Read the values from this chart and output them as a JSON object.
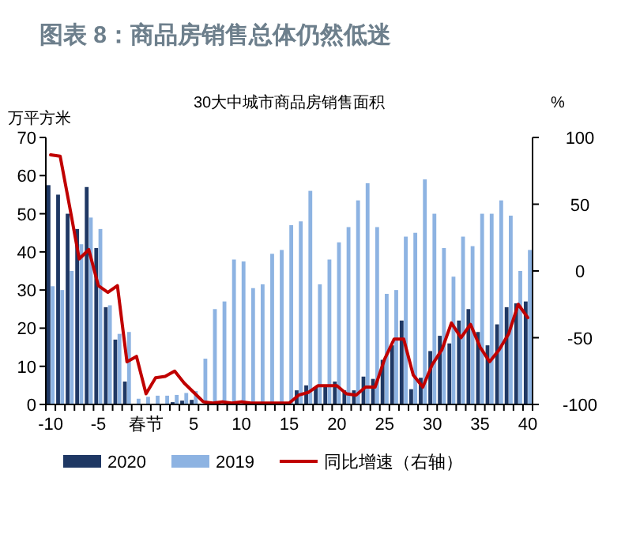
{
  "chart_data": {
    "type": "bar",
    "title": "图表 8：商品房销售总体仍然低迷",
    "subtitle": "30大中城市商品房销售面积",
    "ylabel": "万平方米",
    "y2label": "%",
    "categories": [
      "-10",
      null,
      null,
      null,
      null,
      "-5",
      null,
      null,
      null,
      null,
      "春节",
      null,
      null,
      null,
      null,
      "5",
      null,
      null,
      null,
      null,
      "10",
      null,
      null,
      null,
      null,
      "15",
      null,
      null,
      null,
      null,
      "20",
      null,
      null,
      null,
      null,
      "25",
      null,
      null,
      null,
      null,
      "30",
      null,
      null,
      null,
      null,
      "35",
      null,
      null,
      null,
      null,
      "40"
    ],
    "series": [
      {
        "name": "2020",
        "color": "#1f3864",
        "values": [
          57.5,
          55,
          50,
          46,
          57,
          41,
          25.5,
          17,
          6,
          null,
          0.2,
          null,
          null,
          0.6,
          1,
          1.2,
          null,
          0.3,
          null,
          0.3,
          null,
          0.3,
          0.3,
          0.3,
          0.3,
          0.5,
          3.7,
          5,
          4.5,
          5,
          6,
          3.7,
          3.7,
          7.3,
          6.7,
          11.7,
          15.5,
          22,
          4,
          7,
          14,
          18,
          16,
          22,
          25,
          19,
          15.5,
          21,
          25.5,
          26.5,
          27
        ]
      },
      {
        "name": "2019",
        "color": "#8db3e2",
        "values": [
          31,
          30,
          35,
          42,
          49,
          46,
          26,
          18.5,
          19,
          1.5,
          2,
          2.3,
          2.3,
          2.5,
          3,
          3.5,
          12,
          25,
          27,
          38,
          37.5,
          30.5,
          31.5,
          39.5,
          40.5,
          47,
          48,
          56,
          31.5,
          38,
          42.5,
          46.5,
          53.5,
          58,
          46.5,
          29,
          30,
          44,
          45,
          59,
          50,
          41,
          33.5,
          44,
          41.5,
          50,
          50,
          53.5,
          49.5,
          35,
          40.5
        ]
      },
      {
        "name": "同比增速（右轴）",
        "color": "#c00000",
        "type": "line",
        "axis": "y2",
        "values": [
          87,
          86,
          48,
          9,
          16,
          -11,
          -16,
          -11,
          -68,
          -64,
          -92,
          -80,
          -79,
          -75,
          -84,
          -91,
          -98,
          -99,
          -98,
          -99,
          -98,
          -99,
          -99,
          -99,
          -99,
          -99,
          -93,
          -91,
          -86,
          -86,
          -86,
          -92,
          -93,
          -87,
          -87,
          -66,
          -51,
          -51,
          -78,
          -87,
          -70,
          -59,
          -39,
          -50,
          -40,
          -57,
          -68,
          -59,
          -47,
          -25,
          -35
        ]
      }
    ],
    "ylim": [
      0,
      70
    ],
    "yticks": [
      0,
      10,
      20,
      30,
      40,
      50,
      60,
      70
    ],
    "y2lim": [
      -100,
      100
    ],
    "y2ticks": [
      -100,
      -50,
      0,
      50,
      100
    ],
    "grid": false,
    "legend": "bottom",
    "marker": "none",
    "line_style": "solid"
  }
}
